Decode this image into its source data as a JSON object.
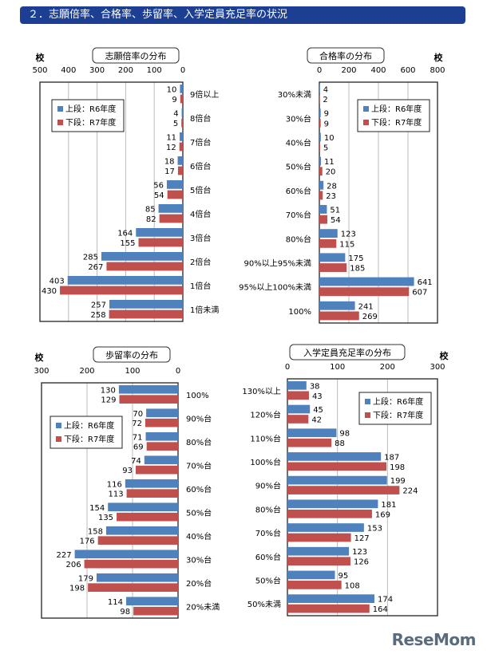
{
  "header": {
    "title": "２．志願倍率、合格率、歩留率、入学定員充足率の状況"
  },
  "logo": "ReseMom",
  "colors": {
    "r6": "#4f81bd",
    "r7": "#c0504d",
    "header": "#1c3f94"
  },
  "chart_data": [
    {
      "type": "bar",
      "orientation": "horizontal",
      "x_reversed": true,
      "title": "志願倍率の分布",
      "unit": "校",
      "xlim": [
        0,
        500
      ],
      "ticks": [
        0,
        100,
        200,
        300,
        400,
        500
      ],
      "grid": true,
      "legend": "top-left",
      "categories": [
        "9倍以上",
        "8倍台",
        "7倍台",
        "6倍台",
        "5倍台",
        "4倍台",
        "3倍台",
        "2倍台",
        "1倍台",
        "1倍未満"
      ],
      "series": [
        {
          "name": "上段：R6年度",
          "values": [
            10,
            4,
            11,
            18,
            56,
            85,
            164,
            285,
            403,
            257
          ]
        },
        {
          "name": "下段：R7年度",
          "values": [
            9,
            5,
            12,
            17,
            54,
            82,
            155,
            267,
            430,
            258
          ]
        }
      ]
    },
    {
      "type": "bar",
      "orientation": "horizontal",
      "x_reversed": false,
      "title": "合格率の分布",
      "unit": "校",
      "xlim": [
        0,
        800
      ],
      "ticks": [
        0,
        200,
        400,
        600,
        800
      ],
      "grid": true,
      "legend": "top-right",
      "categories": [
        "30%未満",
        "30%台",
        "40%台",
        "50%台",
        "60%台",
        "70%台",
        "80%台",
        "90%以上95%未満",
        "95%以上100%未満",
        "100%"
      ],
      "series": [
        {
          "name": "上段：R6年度",
          "values": [
            4,
            9,
            10,
            11,
            28,
            51,
            123,
            175,
            641,
            241
          ]
        },
        {
          "name": "下段：R7年度",
          "values": [
            2,
            9,
            5,
            20,
            23,
            54,
            115,
            185,
            607,
            269
          ]
        }
      ]
    },
    {
      "type": "bar",
      "orientation": "horizontal",
      "x_reversed": true,
      "title": "歩留率の分布",
      "unit": "校",
      "xlim": [
        0,
        300
      ],
      "ticks": [
        0,
        100,
        200,
        300
      ],
      "grid": true,
      "legend": "top-left",
      "categories": [
        "100%",
        "90%台",
        "80%台",
        "70%台",
        "60%台",
        "50%台",
        "40%台",
        "30%台",
        "20%台",
        "20%未満"
      ],
      "series": [
        {
          "name": "上段：R6年度",
          "values": [
            130,
            70,
            71,
            74,
            116,
            154,
            158,
            227,
            179,
            114
          ]
        },
        {
          "name": "下段：R7年度",
          "values": [
            129,
            72,
            69,
            93,
            113,
            135,
            176,
            206,
            198,
            98
          ]
        }
      ]
    },
    {
      "type": "bar",
      "orientation": "horizontal",
      "x_reversed": false,
      "title": "入学定員充足率の分布",
      "unit": "校",
      "xlim": [
        0,
        300
      ],
      "ticks": [
        0,
        100,
        200,
        300
      ],
      "grid": true,
      "legend": "top-right",
      "categories": [
        "130%以上",
        "120%台",
        "110%台",
        "100%台",
        "90%台",
        "80%台",
        "70%台",
        "60%台",
        "50%台",
        "50%未満"
      ],
      "series": [
        {
          "name": "上段：R6年度",
          "values": [
            38,
            45,
            98,
            187,
            199,
            181,
            153,
            123,
            95,
            174
          ]
        },
        {
          "name": "下段：R7年度",
          "values": [
            43,
            42,
            88,
            198,
            224,
            169,
            127,
            126,
            108,
            164
          ]
        }
      ]
    }
  ]
}
